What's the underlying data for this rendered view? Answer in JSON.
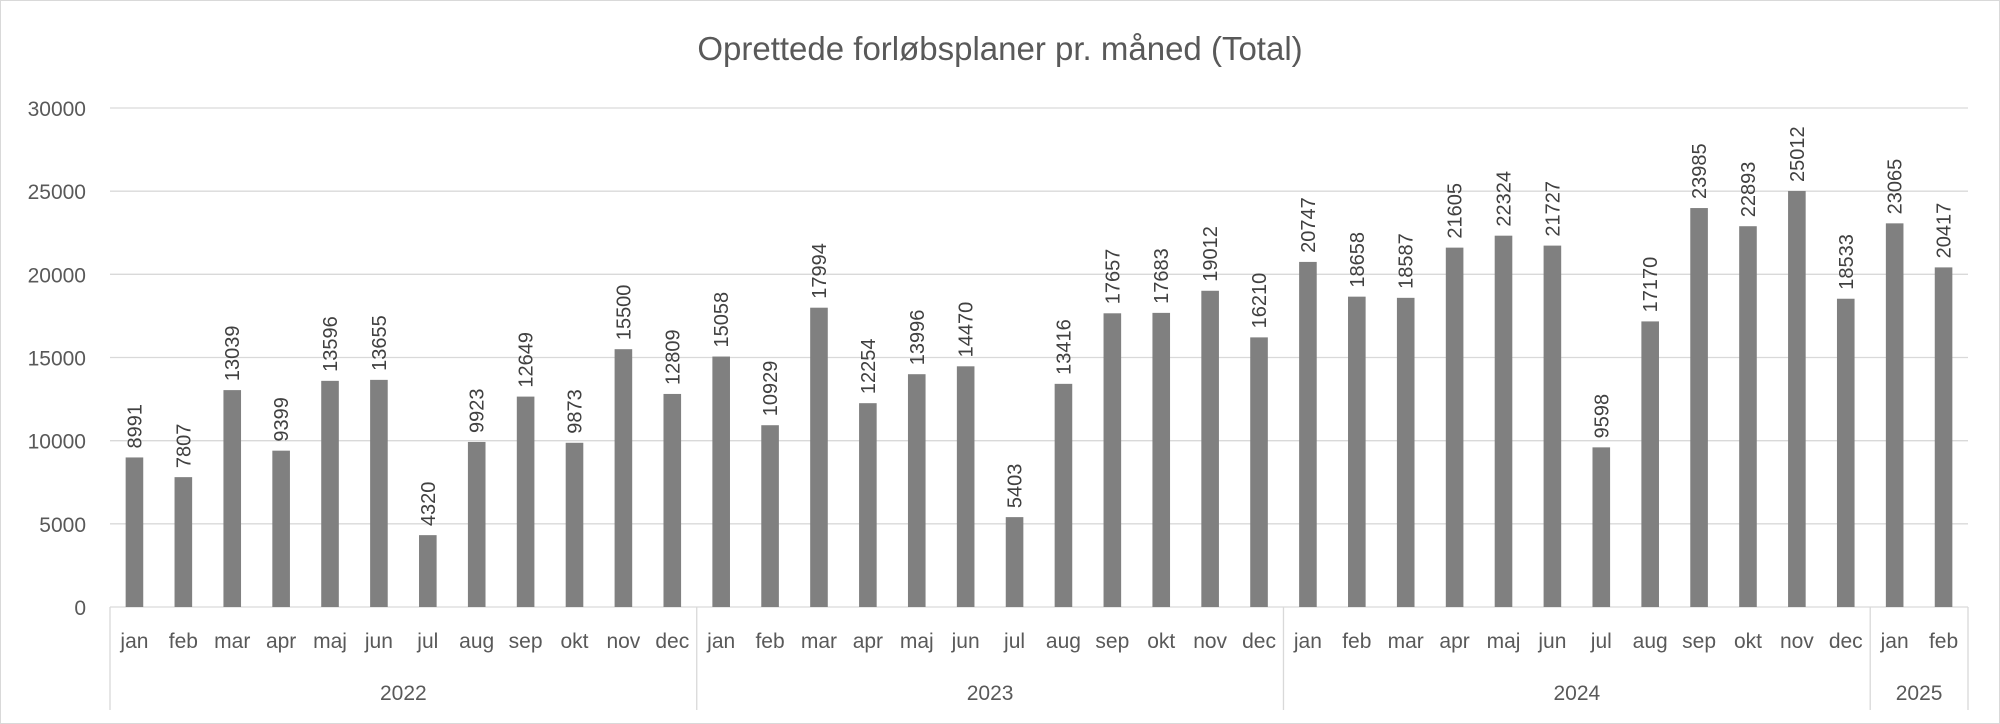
{
  "chart_data": {
    "type": "bar",
    "title": "Oprettede forløbsplaner pr. måned (Total)",
    "xlabel": "",
    "ylabel": "",
    "ylim": [
      0,
      30000
    ],
    "yticks": [
      0,
      5000,
      10000,
      15000,
      20000,
      25000,
      30000
    ],
    "grid": true,
    "legend": "none",
    "color": "#808080",
    "groups": [
      {
        "year": "2022",
        "categories": [
          "jan",
          "feb",
          "mar",
          "apr",
          "maj",
          "jun",
          "jul",
          "aug",
          "sep",
          "okt",
          "nov",
          "dec"
        ],
        "values": [
          8991,
          7807,
          13039,
          9399,
          13596,
          13655,
          4320,
          9923,
          12649,
          9873,
          15500,
          12809
        ]
      },
      {
        "year": "2023",
        "categories": [
          "jan",
          "feb",
          "mar",
          "apr",
          "maj",
          "jun",
          "jul",
          "aug",
          "sep",
          "okt",
          "nov",
          "dec"
        ],
        "values": [
          15058,
          10929,
          17994,
          12254,
          13996,
          14470,
          5403,
          13416,
          17657,
          17683,
          19012,
          16210
        ]
      },
      {
        "year": "2024",
        "categories": [
          "jan",
          "feb",
          "mar",
          "apr",
          "maj",
          "jun",
          "jul",
          "aug",
          "sep",
          "okt",
          "nov",
          "dec"
        ],
        "values": [
          20747,
          18658,
          18587,
          21605,
          22324,
          21727,
          9598,
          17170,
          23985,
          22893,
          25012,
          18533
        ]
      },
      {
        "year": "2025",
        "categories": [
          "jan",
          "feb"
        ],
        "values": [
          23065,
          20417
        ]
      }
    ]
  }
}
